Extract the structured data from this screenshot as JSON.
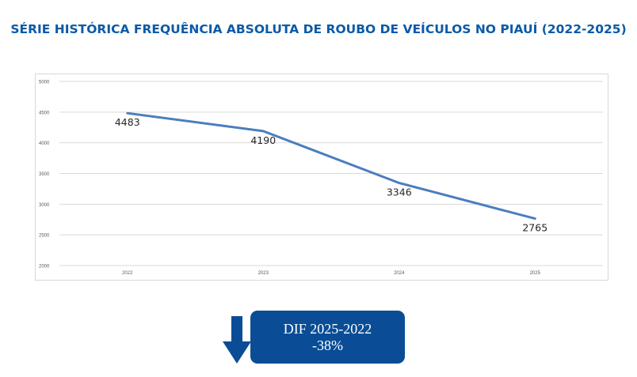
{
  "title": "SÉRIE HISTÓRICA FREQUÊNCIA ABSOLUTA  DE ROUBO DE VEÍCULOS  NO PIAUÍ (2022-2025)",
  "colors": {
    "title": "#0a5aa8",
    "line": "#4a7ebf",
    "box": "#0a4d96",
    "arrow": "#0a4d96"
  },
  "chart_data": {
    "type": "line",
    "title": "",
    "xlabel": "",
    "ylabel": "",
    "categories": [
      "2022",
      "2023",
      "2024",
      "2025"
    ],
    "series": [
      {
        "values": [
          4483,
          4190,
          3346,
          2765
        ],
        "data_labels": [
          "4483",
          "4190",
          "3346",
          "2765"
        ]
      }
    ],
    "ylim": [
      2000,
      5000
    ],
    "yticks": [
      "2000",
      "2500",
      "3000",
      "3500",
      "4000",
      "4500",
      "5000"
    ],
    "grid": true,
    "legend": "none"
  },
  "summary": {
    "label": "DIF 2025-2022",
    "value": "-38%",
    "icon": "arrow-down-icon"
  }
}
